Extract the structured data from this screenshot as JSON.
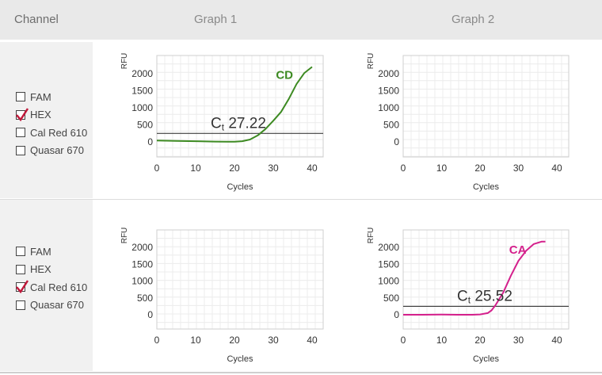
{
  "header": {
    "channel": "Channel",
    "graph1": "Graph 1",
    "graph2": "Graph 2"
  },
  "rows": [
    {
      "channels": [
        {
          "label": "FAM",
          "checked": false
        },
        {
          "label": "HEX",
          "checked": true
        },
        {
          "label": "Cal Red 610",
          "checked": false
        },
        {
          "label": "Quasar 670",
          "checked": false
        }
      ]
    },
    {
      "channels": [
        {
          "label": "FAM",
          "checked": false
        },
        {
          "label": "HEX",
          "checked": false
        },
        {
          "label": "Cal Red 610",
          "checked": true
        },
        {
          "label": "Quasar 670",
          "checked": false
        }
      ]
    }
  ],
  "colors": {
    "green": "#3d8a22",
    "magenta": "#d4208c",
    "check": "#c0183a"
  },
  "chart_data": [
    {
      "type": "line",
      "xlabel": "Cycles",
      "ylabel": "RFU",
      "xlim": [
        0,
        40
      ],
      "ylim": [
        0,
        2000
      ],
      "xticks": [
        "0",
        "10",
        "20",
        "30",
        "40"
      ],
      "yticks": [
        "0",
        "500",
        "1000",
        "1500",
        "2000"
      ],
      "grid": true,
      "threshold": 250,
      "ct_label": {
        "prefix": "C",
        "sub": "t",
        "value": "27.22"
      },
      "series": [
        {
          "name": "CD",
          "color": "#3d8a22",
          "x": [
            0,
            5,
            10,
            15,
            18,
            20,
            22,
            24,
            26,
            28,
            30,
            32,
            34,
            36,
            38,
            40
          ],
          "y": [
            40,
            30,
            20,
            10,
            5,
            5,
            20,
            70,
            190,
            380,
            620,
            880,
            1260,
            1700,
            2020,
            2200
          ]
        }
      ]
    },
    {
      "type": "line",
      "xlabel": "Cycles",
      "ylabel": "RFU",
      "xlim": [
        0,
        40
      ],
      "ylim": [
        0,
        2000
      ],
      "xticks": [
        "0",
        "10",
        "20",
        "30",
        "40"
      ],
      "yticks": [
        "0",
        "500",
        "1000",
        "1500",
        "2000"
      ],
      "grid": true,
      "series": []
    },
    {
      "type": "line",
      "xlabel": "Cycles",
      "ylabel": "RFU",
      "xlim": [
        0,
        40
      ],
      "ylim": [
        0,
        2000
      ],
      "xticks": [
        "0",
        "10",
        "20",
        "30",
        "40"
      ],
      "yticks": [
        "0",
        "500",
        "1000",
        "1500",
        "2000"
      ],
      "grid": true,
      "series": []
    },
    {
      "type": "line",
      "xlabel": "Cycles",
      "ylabel": "RFU",
      "xlim": [
        0,
        40
      ],
      "ylim": [
        0,
        2000
      ],
      "xticks": [
        "0",
        "10",
        "20",
        "30",
        "40"
      ],
      "yticks": [
        "0",
        "500",
        "1000",
        "1500",
        "2000"
      ],
      "grid": true,
      "threshold": 250,
      "ct_label": {
        "prefix": "C",
        "sub": "t",
        "value": "25.52"
      },
      "series": [
        {
          "name": "CA",
          "color": "#d4208c",
          "x": [
            0,
            5,
            10,
            14,
            18,
            20,
            22,
            23,
            24,
            26,
            28,
            30,
            32,
            34,
            36,
            37
          ],
          "y": [
            0,
            0,
            5,
            0,
            0,
            10,
            50,
            130,
            280,
            650,
            1150,
            1600,
            1900,
            2100,
            2170,
            2170
          ]
        }
      ]
    }
  ]
}
